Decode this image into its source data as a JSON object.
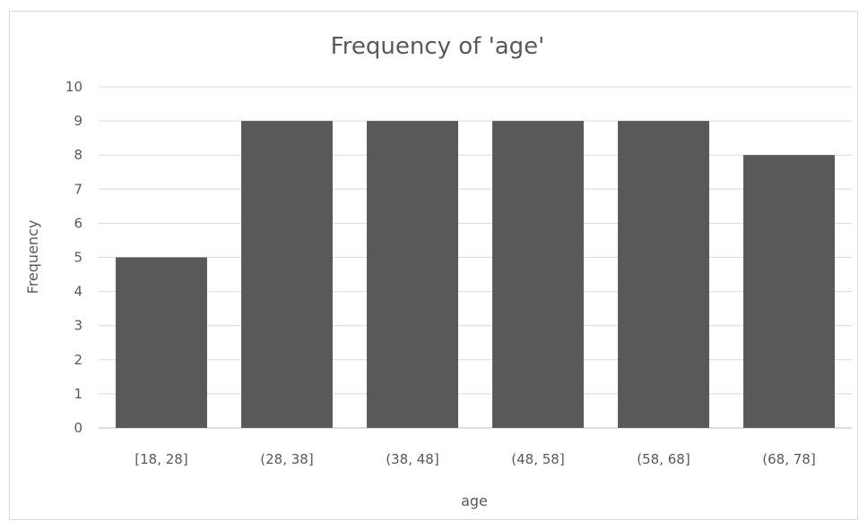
{
  "chart_data": {
    "type": "bar",
    "title": "Frequency of 'age'",
    "xlabel": "age",
    "ylabel": "Frequency",
    "categories": [
      "[18, 28]",
      "(28, 38]",
      "(38, 48]",
      "(48, 58]",
      "(58, 68]",
      "(68, 78]"
    ],
    "values": [
      5,
      9,
      9,
      9,
      9,
      8
    ],
    "ylim": [
      0,
      10
    ],
    "yticks": [
      0,
      1,
      2,
      3,
      4,
      5,
      6,
      7,
      8,
      9,
      10
    ],
    "grid": true,
    "legend": "none",
    "bar_color": "#595959"
  }
}
